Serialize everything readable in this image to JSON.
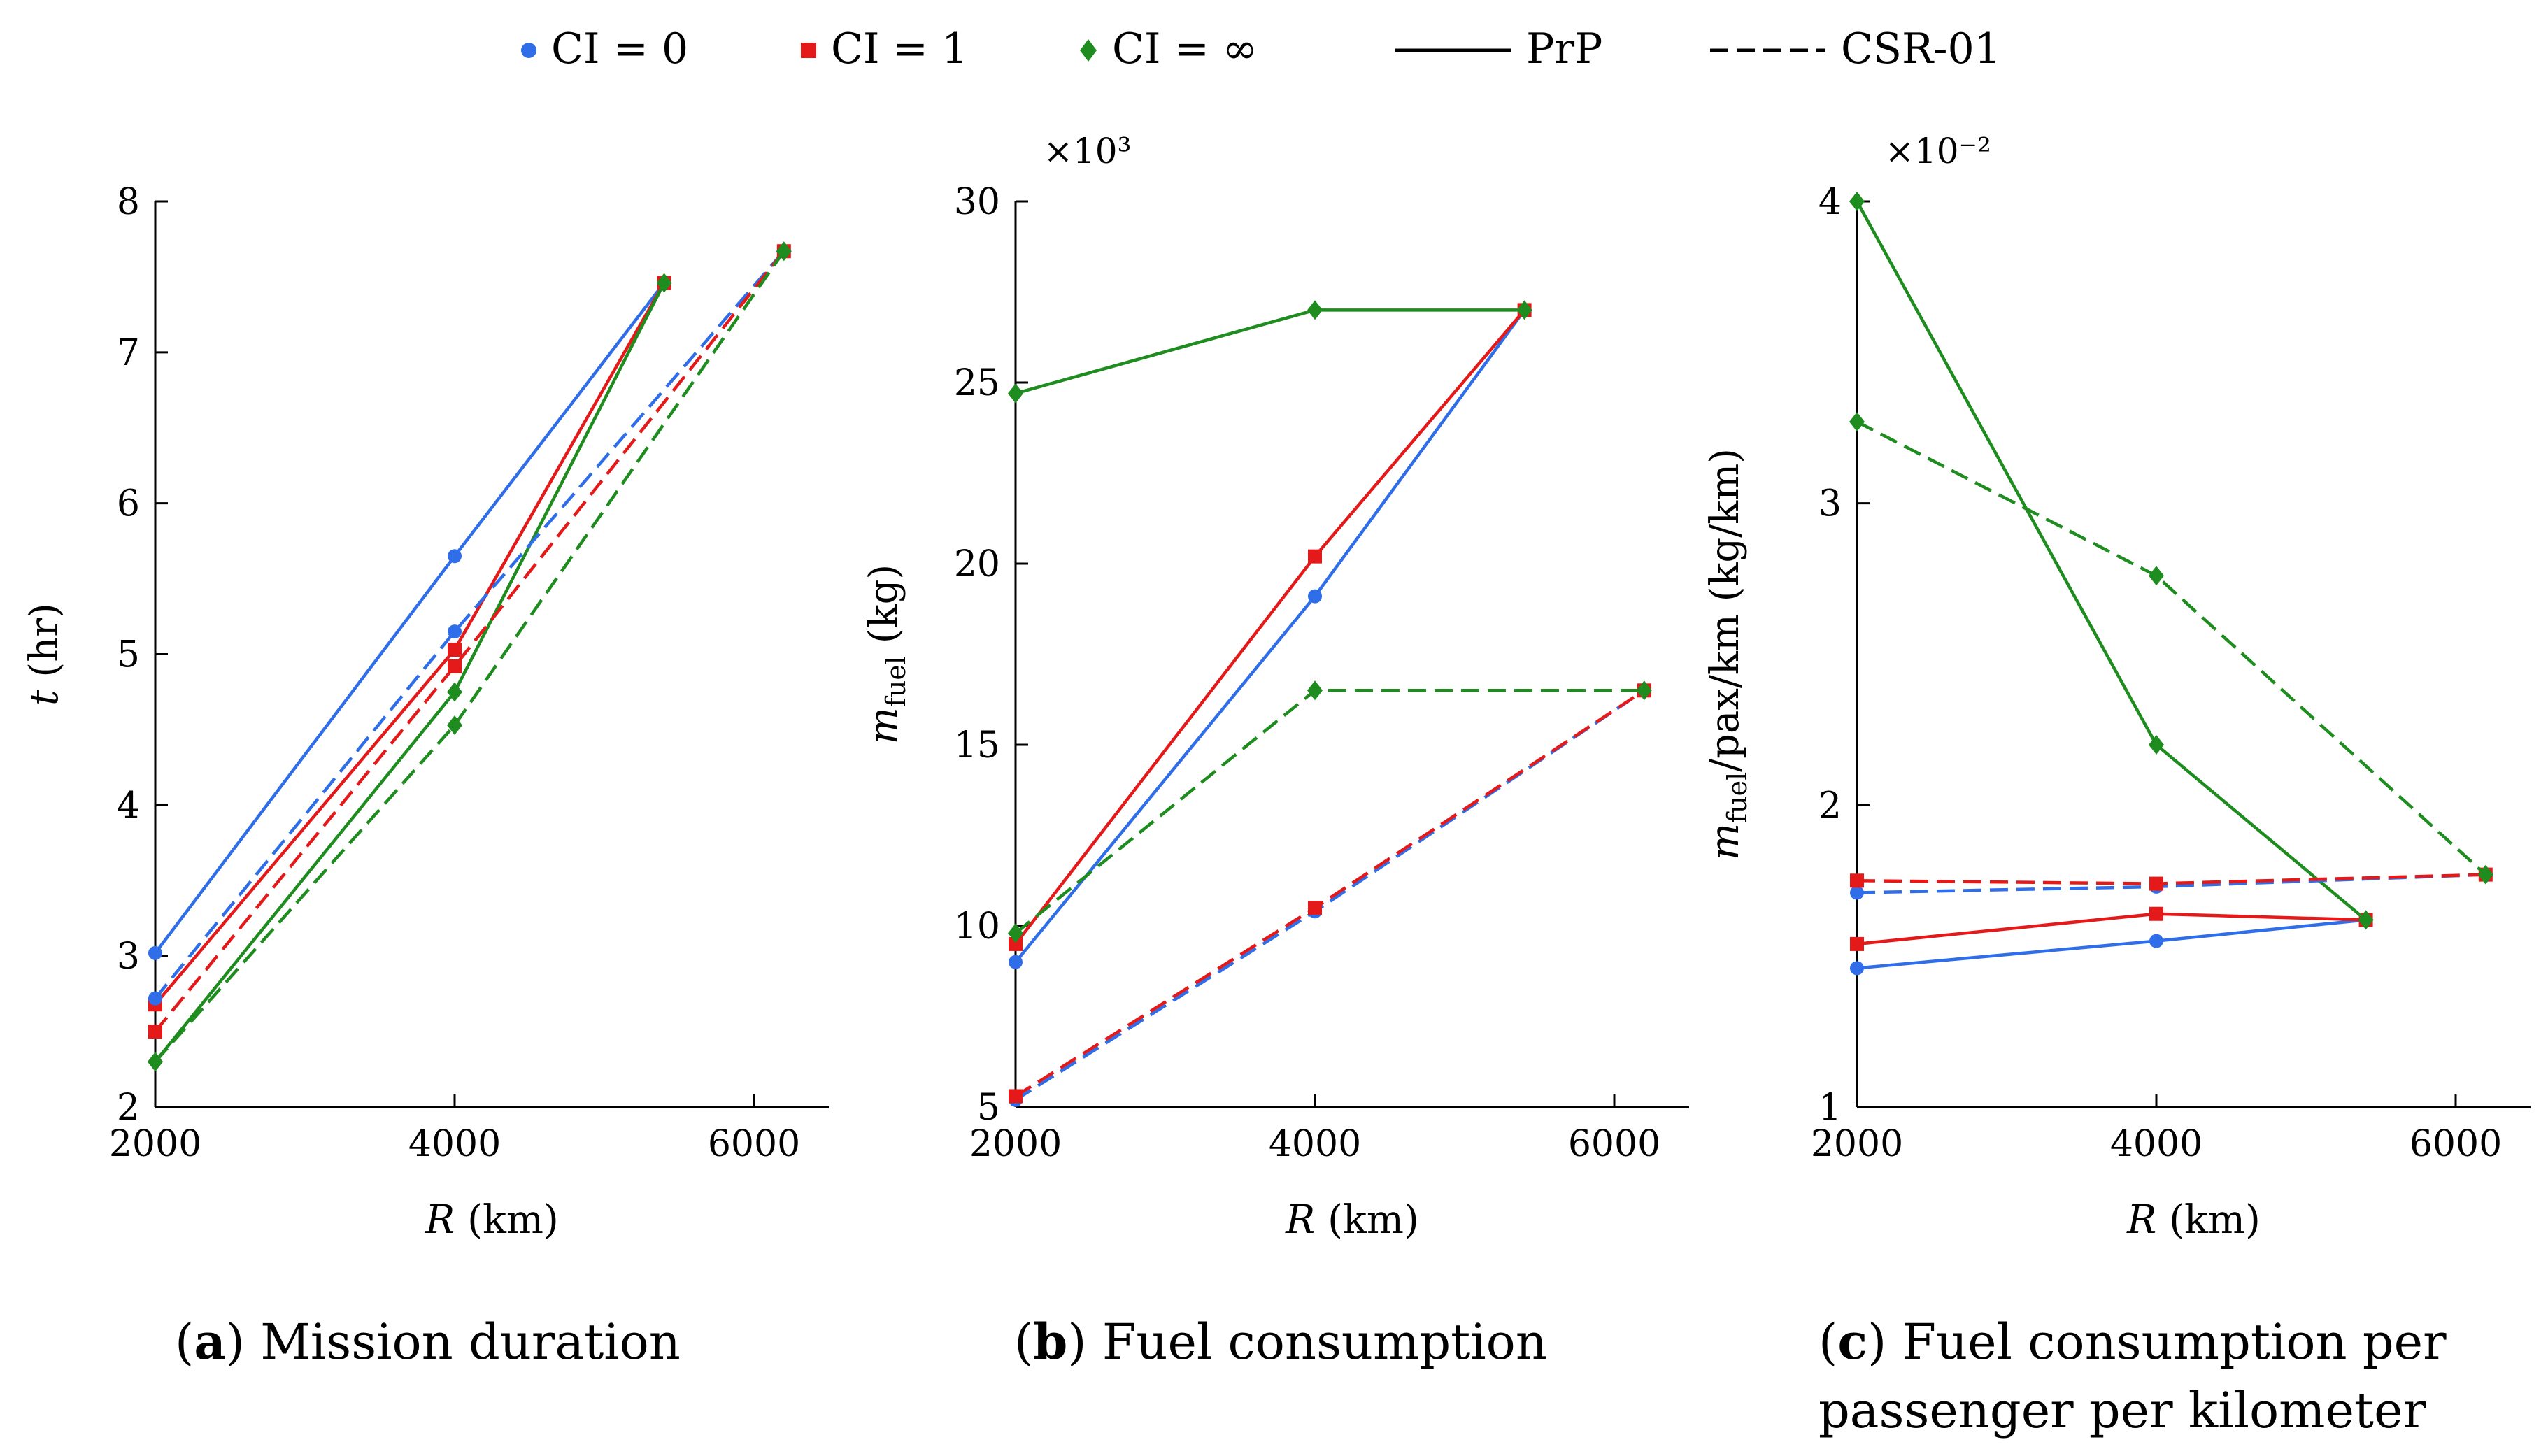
{
  "legend": {
    "ci0": "CI = 0",
    "ci1": "CI = 1",
    "ciinf": "CI = ∞",
    "prp": "PrP",
    "csr": "CSR-01"
  },
  "colors": {
    "ci0": "#2f6ee8",
    "ci1": "#e41a1a",
    "ciinf": "#1e8c1e"
  },
  "captions": {
    "a": {
      "letter": "a",
      "text": "Mission duration"
    },
    "b": {
      "letter": "b",
      "text": "Fuel consumption"
    },
    "c": {
      "letter": "c",
      "text": "Fuel consumption per passenger per kilometer"
    }
  },
  "chart_data": [
    {
      "type": "line",
      "id": "a",
      "title": "Mission duration",
      "xlabel": "R (km)",
      "ylabel": "t (hr)",
      "xlim": [
        2000,
        6500
      ],
      "xticks": [
        2000,
        4000,
        6000
      ],
      "ylim": [
        2,
        8
      ],
      "yticks": [
        2,
        3,
        4,
        5,
        6,
        7,
        8
      ],
      "scale_label": "",
      "series": [
        {
          "name": "CI = 0, PrP",
          "color": "ci0",
          "marker": "circle",
          "style": "solid",
          "x": [
            2000,
            4000,
            5400
          ],
          "y": [
            3.02,
            5.65,
            7.46
          ]
        },
        {
          "name": "CI = 1, PrP",
          "color": "ci1",
          "marker": "square",
          "style": "solid",
          "x": [
            2000,
            4000,
            5400
          ],
          "y": [
            2.68,
            5.03,
            7.46
          ]
        },
        {
          "name": "CI = ∞, PrP",
          "color": "ciinf",
          "marker": "diamond",
          "style": "solid",
          "x": [
            2000,
            4000,
            5400
          ],
          "y": [
            2.3,
            4.75,
            7.46
          ]
        },
        {
          "name": "CI = 0, CSR-01",
          "color": "ci0",
          "marker": "circle",
          "style": "dashed",
          "x": [
            2000,
            4000,
            6200
          ],
          "y": [
            2.72,
            5.15,
            7.67
          ]
        },
        {
          "name": "CI = 1, CSR-01",
          "color": "ci1",
          "marker": "square",
          "style": "dashed",
          "x": [
            2000,
            4000,
            6200
          ],
          "y": [
            2.5,
            4.92,
            7.67
          ]
        },
        {
          "name": "CI = ∞, CSR-01",
          "color": "ciinf",
          "marker": "diamond",
          "style": "dashed",
          "x": [
            2000,
            4000,
            6200
          ],
          "y": [
            2.3,
            4.53,
            7.67
          ]
        }
      ]
    },
    {
      "type": "line",
      "id": "b",
      "title": "Fuel consumption",
      "xlabel": "R (km)",
      "ylabel": "m_fuel (kg)",
      "xlim": [
        2000,
        6500
      ],
      "xticks": [
        2000,
        4000,
        6000
      ],
      "ylim": [
        5,
        30
      ],
      "yticks": [
        5,
        10,
        15,
        20,
        25,
        30
      ],
      "scale_label": "×10³",
      "series": [
        {
          "name": "CI = 0, PrP",
          "color": "ci0",
          "marker": "circle",
          "style": "solid",
          "x": [
            2000,
            4000,
            5400
          ],
          "y": [
            9.0,
            19.1,
            27.0
          ]
        },
        {
          "name": "CI = 1, PrP",
          "color": "ci1",
          "marker": "square",
          "style": "solid",
          "x": [
            2000,
            4000,
            5400
          ],
          "y": [
            9.5,
            20.2,
            27.0
          ]
        },
        {
          "name": "CI = ∞, PrP",
          "color": "ciinf",
          "marker": "diamond",
          "style": "solid",
          "x": [
            2000,
            4000,
            5400
          ],
          "y": [
            24.7,
            27.0,
            27.0
          ]
        },
        {
          "name": "CI = 0, CSR-01",
          "color": "ci0",
          "marker": "circle",
          "style": "dashed",
          "x": [
            2000,
            4000,
            6200
          ],
          "y": [
            5.2,
            10.4,
            16.5
          ]
        },
        {
          "name": "CI = 1, CSR-01",
          "color": "ci1",
          "marker": "square",
          "style": "dashed",
          "x": [
            2000,
            4000,
            6200
          ],
          "y": [
            5.3,
            10.5,
            16.5
          ]
        },
        {
          "name": "CI = ∞, CSR-01",
          "color": "ciinf",
          "marker": "diamond",
          "style": "dashed",
          "x": [
            2000,
            4000,
            6200
          ],
          "y": [
            9.8,
            16.5,
            16.5
          ]
        }
      ]
    },
    {
      "type": "line",
      "id": "c",
      "title": "Fuel consumption per passenger per kilometer",
      "xlabel": "R (km)",
      "ylabel": "m_fuel/pax/km (kg/km)",
      "xlim": [
        2000,
        6500
      ],
      "xticks": [
        2000,
        4000,
        6000
      ],
      "ylim": [
        1,
        4
      ],
      "yticks": [
        1,
        2,
        3,
        4
      ],
      "scale_label": "×10⁻²",
      "series": [
        {
          "name": "CI = 0, PrP",
          "color": "ci0",
          "marker": "circle",
          "style": "solid",
          "x": [
            2000,
            4000,
            5400
          ],
          "y": [
            1.46,
            1.55,
            1.62
          ]
        },
        {
          "name": "CI = 1, PrP",
          "color": "ci1",
          "marker": "square",
          "style": "solid",
          "x": [
            2000,
            4000,
            5400
          ],
          "y": [
            1.54,
            1.64,
            1.62
          ]
        },
        {
          "name": "CI = ∞, PrP",
          "color": "ciinf",
          "marker": "diamond",
          "style": "solid",
          "x": [
            2000,
            4000,
            5400
          ],
          "y": [
            4.0,
            2.2,
            1.62
          ]
        },
        {
          "name": "CI = 0, CSR-01",
          "color": "ci0",
          "marker": "circle",
          "style": "dashed",
          "x": [
            2000,
            4000,
            6200
          ],
          "y": [
            1.71,
            1.73,
            1.77
          ]
        },
        {
          "name": "CI = 1, CSR-01",
          "color": "ci1",
          "marker": "square",
          "style": "dashed",
          "x": [
            2000,
            4000,
            6200
          ],
          "y": [
            1.75,
            1.74,
            1.77
          ]
        },
        {
          "name": "CI = ∞, CSR-01",
          "color": "ciinf",
          "marker": "diamond",
          "style": "dashed",
          "x": [
            2000,
            4000,
            6200
          ],
          "y": [
            3.27,
            2.76,
            1.77
          ]
        }
      ]
    }
  ]
}
